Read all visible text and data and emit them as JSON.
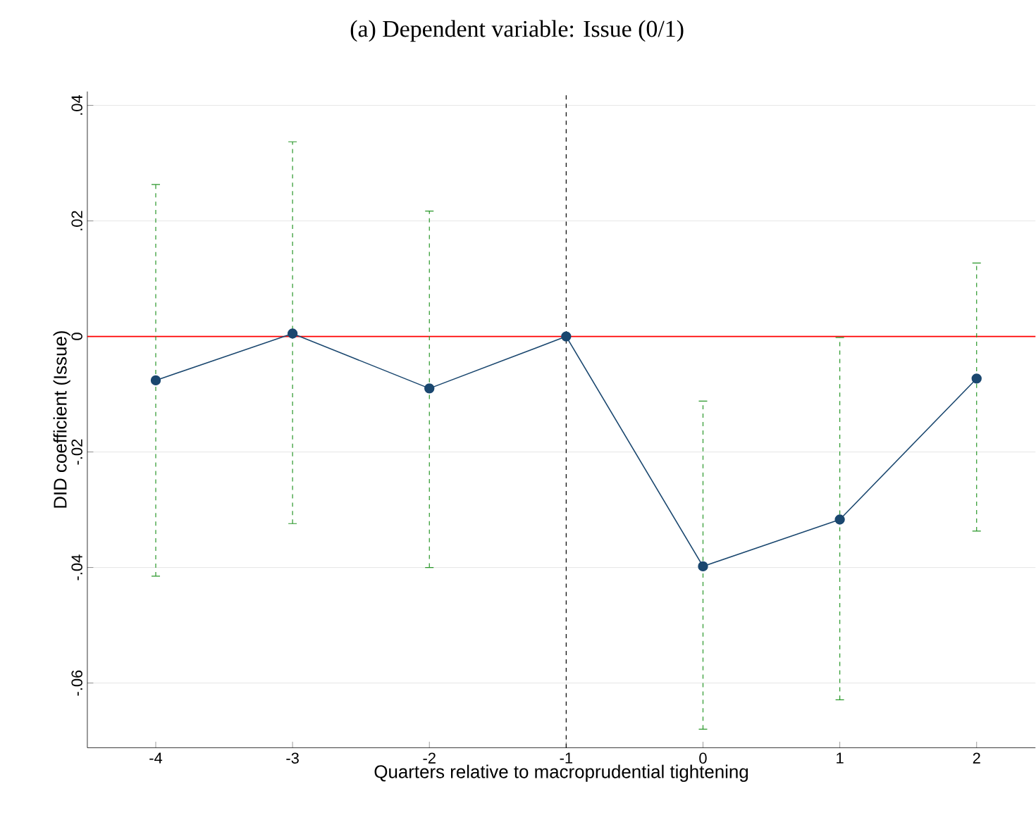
{
  "chart_data": {
    "type": "line",
    "title": "(a) Dependent variable: Issue (0/1)",
    "xlabel": "Quarters relative to macroprudential tightening",
    "ylabel": "DID coefficient (Issue)",
    "x": [
      -4,
      -3,
      -2,
      -1,
      0,
      1,
      2
    ],
    "series": [
      {
        "color": "#1a476f",
        "values": [
          -0.0076,
          0.0005,
          -0.009,
          0,
          -0.0398,
          -0.0317,
          -0.0073
        ],
        "errors": [
          [
            -0.0415,
            0.0263
          ],
          [
            -0.0324,
            0.0337
          ],
          [
            -0.04,
            0.0217
          ],
          null,
          [
            -0.068,
            -0.0112
          ],
          [
            -0.0629,
            -0.0002
          ],
          [
            -0.0337,
            0.0127
          ]
        ]
      }
    ],
    "xlim": [
      -4.5,
      2.43
    ],
    "ylim": [
      -0.0712,
      0.0424
    ],
    "xticks": [
      -4,
      -3,
      -2,
      -1,
      0,
      1,
      2
    ],
    "yticks": [
      {
        "value": -0.06,
        "label": "-.06"
      },
      {
        "value": -0.04,
        "label": "-.04"
      },
      {
        "value": -0.02,
        "label": "-.02"
      },
      {
        "value": 0,
        "label": "0"
      },
      {
        "value": 0.02,
        "label": ".02"
      },
      {
        "value": 0.04,
        "label": ".04"
      }
    ],
    "grid": "y",
    "marker": "circle",
    "line_style": "solid",
    "ref_lines": [
      {
        "axis": "y",
        "value": 0,
        "color": "#ff0000",
        "line_style": "solid"
      },
      {
        "axis": "x",
        "value": -1,
        "color": "#000000",
        "line_style": "dashed"
      }
    ]
  }
}
